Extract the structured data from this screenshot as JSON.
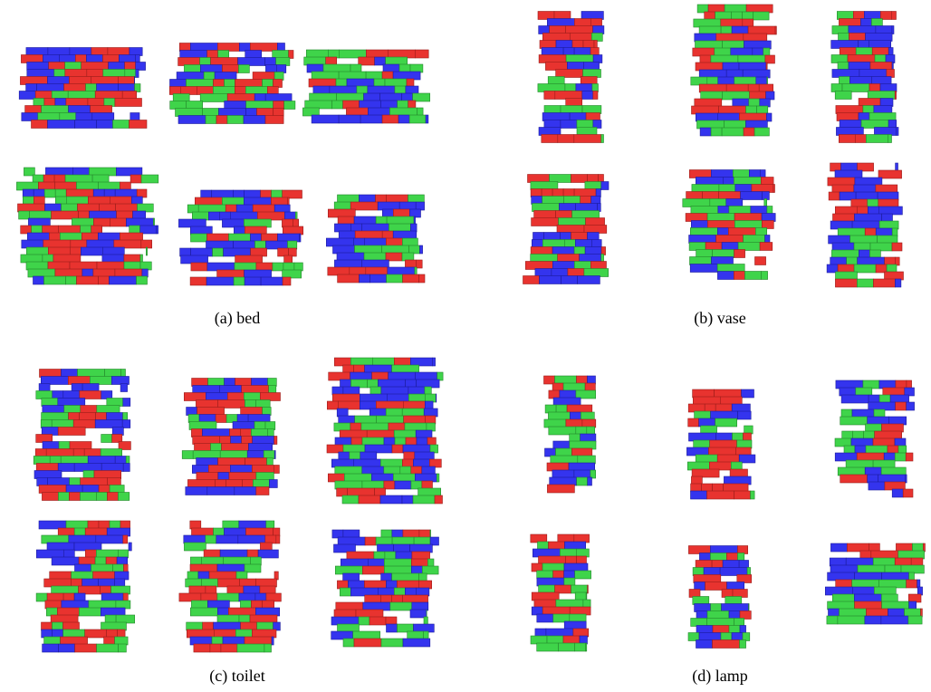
{
  "panels": [
    {
      "caption": "(a) bed"
    },
    {
      "caption": "(b) vase"
    },
    {
      "caption": "(c) toilet"
    },
    {
      "caption": "(d) lamp"
    }
  ]
}
